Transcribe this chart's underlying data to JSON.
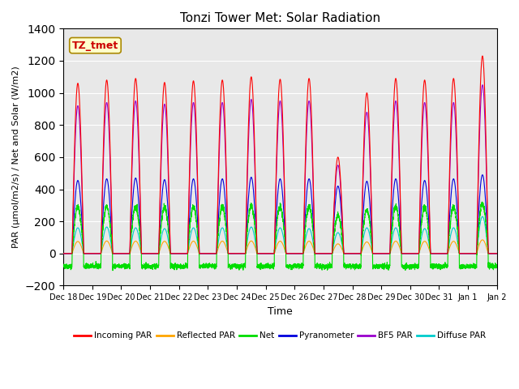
{
  "title": "Tonzi Tower Met: Solar Radiation",
  "ylabel": "PAR (μmol/m2/s) / Net and Solar (W/m2)",
  "xlabel": "Time",
  "ylim": [
    -200,
    1400
  ],
  "yticks": [
    -200,
    0,
    200,
    400,
    600,
    800,
    1000,
    1200,
    1400
  ],
  "x_tick_labels": [
    "Dec 18",
    "Dec 19",
    "Dec 20",
    "Dec 21",
    "Dec 22",
    "Dec 23",
    "Dec 24",
    "Dec 25",
    "Dec 26",
    "Dec 27",
    "Dec 28",
    "Dec 29",
    "Dec 30",
    "Dec 31",
    "Jan 1",
    "Jan 2"
  ],
  "n_days": 15,
  "annotation_text": "TZ_tmet",
  "annotation_color": "#cc0000",
  "annotation_bg": "#ffffcc",
  "bg_color": "#e8e8e8",
  "colors": {
    "incoming_par": "#ff0000",
    "reflected_par": "#ffa500",
    "net": "#00dd00",
    "pyranometer": "#0000dd",
    "bf5_par": "#9900cc",
    "diffuse_par": "#00cccc"
  },
  "legend_labels": [
    "Incoming PAR",
    "Reflected PAR",
    "Net",
    "Pyranometer",
    "BF5 PAR",
    "Diffuse PAR"
  ],
  "incoming_peaks": [
    1060,
    1080,
    1090,
    1065,
    1075,
    1080,
    1100,
    1085,
    1090,
    600,
    1000,
    1090,
    1080,
    1090,
    1230
  ],
  "bf5_peaks": [
    920,
    940,
    950,
    930,
    940,
    940,
    960,
    950,
    950,
    550,
    880,
    950,
    940,
    940,
    1050
  ],
  "diffuse_peaks": [
    160,
    165,
    160,
    155,
    160,
    160,
    165,
    160,
    155,
    130,
    160,
    160,
    155,
    160,
    230
  ],
  "pyrano_peaks": [
    455,
    465,
    470,
    460,
    465,
    465,
    475,
    465,
    465,
    420,
    450,
    465,
    455,
    465,
    490
  ],
  "reflected_peaks": [
    75,
    78,
    77,
    76,
    77,
    77,
    78,
    77,
    77,
    60,
    72,
    77,
    76,
    76,
    85
  ],
  "net_peaks": [
    290,
    295,
    295,
    290,
    292,
    293,
    296,
    293,
    292,
    235,
    275,
    292,
    290,
    292,
    310
  ],
  "night_net": -80,
  "day_start": 0.3,
  "day_end": 0.7,
  "pts_per_day": 288
}
